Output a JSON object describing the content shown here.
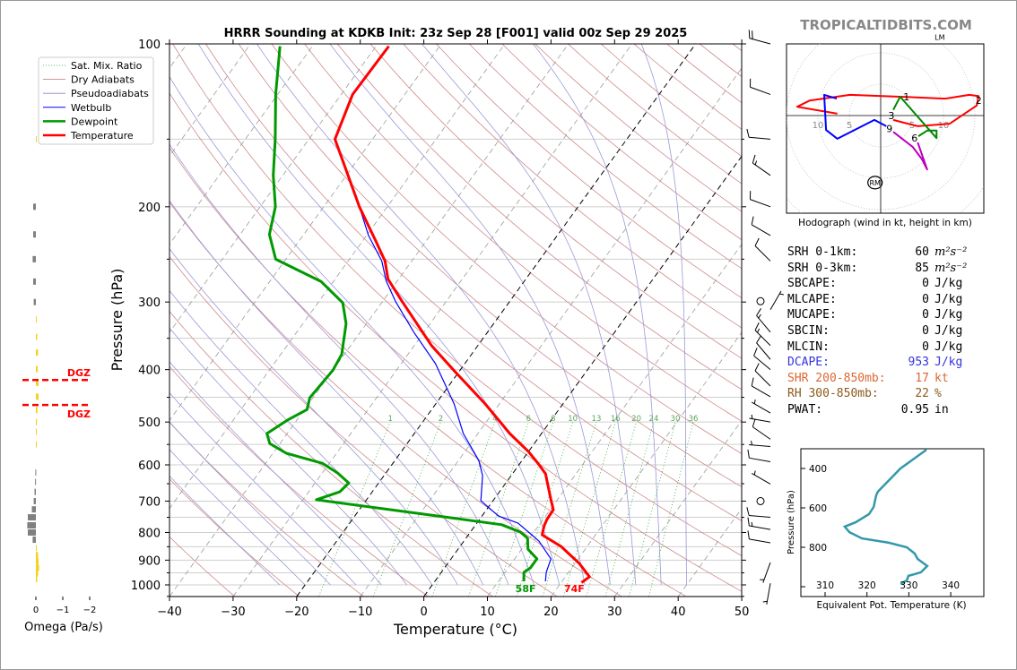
{
  "watermark": "TROPICALTIDBITS.COM",
  "chart_data": [
    {
      "type": "line",
      "subtype": "skew-t log-p",
      "title": "HRRR Sounding at KDKB Init: 23z Sep 28 [F001] valid 00z Sep 29 2025",
      "xlabel": "Temperature (°C)",
      "ylabel": "Pressure (hPa)",
      "xlim": [
        -40,
        50
      ],
      "ylim": [
        1050,
        100
      ],
      "grid": true,
      "xticks": [
        -40,
        -30,
        -20,
        -10,
        0,
        10,
        20,
        30,
        40,
        50
      ],
      "xtick_labels": [
        "−40",
        "−30",
        "−20",
        "−10",
        "0",
        "10",
        "20",
        "30",
        "40",
        "50"
      ],
      "yticks": [
        100,
        200,
        300,
        400,
        500,
        600,
        700,
        800,
        900,
        1000
      ],
      "ytick_labels": [
        "100",
        "200",
        "300",
        "400",
        "500",
        "600",
        "700",
        "800",
        "900",
        "1000"
      ],
      "legend": {
        "placement": "top-left",
        "entries": [
          {
            "label": "Sat. Mix. Ratio",
            "color": "#33aa33",
            "style": "dotted"
          },
          {
            "label": "Dry Adiabats",
            "color": "#c87070",
            "style": "thin"
          },
          {
            "label": "Pseudoadiabats",
            "color": "#8888cc",
            "style": "thin"
          },
          {
            "label": "Wetbulb",
            "color": "#0000ff",
            "style": "solid"
          },
          {
            "label": "Dewpoint",
            "color": "#009900",
            "style": "thick"
          },
          {
            "label": "Temperature",
            "color": "#ff0000",
            "style": "thick"
          }
        ]
      },
      "series": [
        {
          "name": "Temperature",
          "color": "#ff0000",
          "p": [
            990,
            966,
            913,
            875,
            849,
            808,
            778,
            757,
            726,
            696,
            623,
            598,
            567,
            525,
            463,
            401,
            361,
            300,
            272,
            252,
            231,
            200,
            150,
            124,
            101
          ],
          "T": [
            23.2,
            23.8,
            20.7,
            17.9,
            15.9,
            11.6,
            10.9,
            10.6,
            10.5,
            9.0,
            5.2,
            3.0,
            0.0,
            -5.0,
            -12.2,
            -21.0,
            -27.3,
            -36.8,
            -41.7,
            -44.2,
            -48.0,
            -54.4,
            -65.9,
            -68.2,
            -68.0
          ]
        },
        {
          "name": "Dewpoint",
          "color": "#009900",
          "p": [
            985,
            948,
            930,
            895,
            859,
            820,
            799,
            774,
            751,
            696,
            673,
            648,
            621,
            596,
            571,
            548,
            525,
            496,
            474,
            451,
            401,
            375,
            329,
            301,
            275,
            250,
            225,
            200,
            175,
            150,
            124,
            101
          ],
          "T": [
            14.0,
            13.0,
            13.5,
            13.5,
            11.0,
            9.7,
            7.9,
            4.1,
            -4.9,
            -27.9,
            -25.1,
            -24.7,
            -27.6,
            -31.1,
            -37.9,
            -41.6,
            -43.2,
            -41.5,
            -39.6,
            -40.5,
            -40.0,
            -40.4,
            -43.2,
            -46.1,
            -51.9,
            -61.6,
            -65.4,
            -67.6,
            -71.5,
            -75.3,
            -80.3,
            -85.1
          ]
        },
        {
          "name": "Wetbulb",
          "color": "#0000ff",
          "p": [
            985,
            948,
            895,
            830,
            811,
            769,
            746,
            699,
            628,
            589,
            525,
            463,
            390,
            341,
            299,
            274,
            252,
            226,
            200
          ],
          "T": [
            17.4,
            16.5,
            15.7,
            11.8,
            10.2,
            6.5,
            2.6,
            -1.9,
            -4.5,
            -6.8,
            -12.3,
            -17.1,
            -24.6,
            -31.6,
            -38.0,
            -41.8,
            -44.7,
            -49.7,
            -54.4
          ]
        }
      ],
      "surface_labels": {
        "temperature": "74F",
        "dewpoint": "58F"
      },
      "highlighted_isotherms": [
        0,
        -20
      ],
      "mixing_ratio_lines": [
        1,
        2,
        4,
        6,
        8,
        10,
        13,
        16,
        20,
        24,
        30,
        36
      ],
      "mixing_ratio_labels": [
        "1",
        "2",
        "4",
        "6",
        "8",
        "10",
        "13",
        "16",
        "20",
        "24",
        "30",
        "36"
      ],
      "winds_kt": [
        {
          "p": 100,
          "dir": 285,
          "spd": 20
        },
        {
          "p": 124,
          "dir": 290,
          "spd": 10
        },
        {
          "p": 150,
          "dir": 275,
          "spd": 10
        },
        {
          "p": 175,
          "dir": 305,
          "spd": 15
        },
        {
          "p": 200,
          "dir": 290,
          "spd": 10
        },
        {
          "p": 226,
          "dir": 300,
          "spd": 10
        },
        {
          "p": 252,
          "dir": 315,
          "spd": 10
        },
        {
          "p": 299,
          "dir": 0,
          "spd": 0
        },
        {
          "p": 310,
          "dir": 30,
          "spd": 5
        },
        {
          "p": 341,
          "dir": 320,
          "spd": 15
        },
        {
          "p": 361,
          "dir": 315,
          "spd": 15
        },
        {
          "p": 383,
          "dir": 320,
          "spd": 10
        },
        {
          "p": 400,
          "dir": 310,
          "spd": 10
        },
        {
          "p": 429,
          "dir": 315,
          "spd": 10
        },
        {
          "p": 449,
          "dir": 300,
          "spd": 10
        },
        {
          "p": 481,
          "dir": 300,
          "spd": 5
        },
        {
          "p": 500,
          "dir": 280,
          "spd": 5
        },
        {
          "p": 538,
          "dir": 305,
          "spd": 10
        },
        {
          "p": 555,
          "dir": 275,
          "spd": 5
        },
        {
          "p": 592,
          "dir": 280,
          "spd": 10
        },
        {
          "p": 651,
          "dir": 300,
          "spd": 5
        },
        {
          "p": 700,
          "dir": 0,
          "spd": 0
        },
        {
          "p": 750,
          "dir": 275,
          "spd": 10
        },
        {
          "p": 790,
          "dir": 280,
          "spd": 15
        },
        {
          "p": 836,
          "dir": 280,
          "spd": 10
        },
        {
          "p": 909,
          "dir": 200,
          "spd": 5
        },
        {
          "p": 993,
          "dir": 190,
          "spd": 5
        }
      ]
    },
    {
      "type": "bar",
      "name": "omega",
      "xlabel": "Omega (Pa/s)",
      "xticks": [
        0,
        -1,
        -2
      ],
      "xtick_labels": [
        "0",
        "−1",
        "−2"
      ],
      "xlim": [
        0.5,
        -2.1
      ],
      "p": [
        150,
        200,
        225,
        250,
        275,
        300,
        323,
        348,
        372,
        399,
        423,
        449,
        475,
        500,
        521,
        550,
        620,
        645,
        673,
        700,
        725,
        750,
        776,
        800,
        825,
        855,
        881,
        905,
        930,
        952,
        975
      ],
      "values": [
        -0.03,
        0.1,
        0.1,
        0.12,
        0.1,
        0.08,
        -0.02,
        -0.05,
        -0.08,
        -0.07,
        -0.1,
        -0.1,
        -0.06,
        -0.04,
        -0.03,
        -0.02,
        0.02,
        0.03,
        0.05,
        0.08,
        0.15,
        0.3,
        0.32,
        0.3,
        0.12,
        -0.02,
        -0.08,
        -0.1,
        -0.12,
        -0.08,
        -0.05
      ],
      "colors": {
        "rising": "#f5d21c",
        "sinking": "#808080"
      },
      "dgz": {
        "label": "DGZ",
        "top_hpa": 418,
        "bottom_hpa": 465,
        "color": "#ff0000"
      }
    },
    {
      "type": "line",
      "name": "hodograph",
      "xlabel": "Hodograph (wind in kt, height in km)",
      "ring_labels": [
        "10",
        "5",
        "5",
        "10"
      ],
      "ring_label_values": [
        -10,
        -5,
        5,
        10
      ],
      "segments": [
        {
          "name": "0-3 km",
          "color": "#ff0000",
          "uv": [
            [
              -6.9,
              0.3
            ],
            [
              -13.3,
              1.4
            ],
            [
              -11.3,
              2.4
            ],
            [
              -4.9,
              3.3
            ],
            [
              3.1,
              3.0
            ],
            [
              10.3,
              2.7
            ],
            [
              14.1,
              3.3
            ],
            [
              15.6,
              3.1
            ],
            [
              15.3,
              1.6
            ],
            [
              11,
              -1.3
            ],
            [
              5.9,
              -1.7
            ],
            [
              2,
              -0.7
            ]
          ]
        },
        {
          "name": "3-6 km",
          "color": "#008800",
          "uv": [
            [
              2,
              0.9
            ],
            [
              3.1,
              3.0
            ],
            [
              8.9,
              -3.6
            ],
            [
              8.9,
              -2.4
            ],
            [
              7.4,
              -2.4
            ],
            [
              6,
              -3.3
            ]
          ]
        },
        {
          "name": "6-9 km",
          "color": "#bb00bb",
          "uv": [
            [
              5.9,
              -4.3
            ],
            [
              7.4,
              -8.6
            ],
            [
              6.6,
              -7
            ],
            [
              5.1,
              -5
            ],
            [
              2,
              -2.6
            ]
          ]
        },
        {
          "name": "9+ km",
          "color": "#0000ff",
          "uv": [
            [
              0.9,
              -1.7
            ],
            [
              -1,
              -0.7
            ],
            [
              -6.9,
              -3.7
            ],
            [
              -8.7,
              -2.3
            ],
            [
              -9,
              3.3
            ],
            [
              -7,
              2.7
            ]
          ]
        }
      ],
      "height_labels": [
        {
          "text": "1",
          "u": 4.1,
          "v": 3.0
        },
        {
          "text": "2",
          "u": 15.6,
          "v": 2.4
        },
        {
          "text": "3",
          "u": 1.7,
          "v": 0.0
        },
        {
          "text": "6",
          "u": 5.4,
          "v": -3.6
        },
        {
          "text": "9",
          "u": 1.4,
          "v": -2.1
        }
      ],
      "storm_motion": [
        {
          "label": "RM",
          "u": -0.9,
          "v": -10.7
        },
        {
          "label": "LM",
          "u": 9.4,
          "v": 12.9
        }
      ]
    },
    {
      "type": "line",
      "name": "theta-e",
      "xlabel": "Equivalent Pot. Temperature (K)",
      "ylabel": "Pressure (hPa)",
      "xticks": [
        310,
        320,
        330,
        340
      ],
      "xtick_labels": [
        "310",
        "320",
        "330",
        "340"
      ],
      "yticks": [
        400,
        600,
        800
      ],
      "ytick_labels": [
        "400",
        "600",
        "800"
      ],
      "color": "#3399aa",
      "theta_e": [
        334.2,
        328.0,
        322.6,
        322.2,
        321.6,
        320.5,
        317.3,
        314.7,
        315.8,
        318.8,
        325.2,
        329.5,
        331.4,
        332.1,
        334.4,
        332.9,
        329.9,
        329.5,
        328.0
      ],
      "p": [
        305,
        400,
        518,
        536,
        595,
        632,
        673,
        695,
        723,
        755,
        777,
        800,
        832,
        859,
        895,
        927,
        945,
        968,
        986
      ]
    }
  ],
  "stats": [
    {
      "label": "SRH 0-1km:",
      "value": "60",
      "unit": "m²s⁻²",
      "math": true,
      "color": "#000000"
    },
    {
      "label": "SRH 0-3km:",
      "value": "85",
      "unit": "m²s⁻²",
      "math": true,
      "color": "#000000"
    },
    {
      "label": "SBCAPE:",
      "value": "0",
      "unit": "J/kg",
      "color": "#000000"
    },
    {
      "label": "MLCAPE:",
      "value": "0",
      "unit": "J/kg",
      "color": "#000000"
    },
    {
      "label": "MUCAPE:",
      "value": "0",
      "unit": "J/kg",
      "color": "#000000"
    },
    {
      "label": "SBCIN:",
      "value": "0",
      "unit": "J/kg",
      "color": "#000000"
    },
    {
      "label": "MLCIN:",
      "value": "0",
      "unit": "J/kg",
      "color": "#000000"
    },
    {
      "label": "DCAPE:",
      "value": "953",
      "unit": "J/kg",
      "color": "#3333dd"
    },
    {
      "label": "SHR 200-850mb:",
      "value": "17",
      "unit": "kt",
      "color": "#dd6633"
    },
    {
      "label": "RH 300-850mb:",
      "value": "22",
      "unit": "%",
      "color": "#8b5a1b"
    },
    {
      "label": "PWAT:",
      "value": "0.95",
      "unit": "in",
      "color": "#000000"
    }
  ]
}
